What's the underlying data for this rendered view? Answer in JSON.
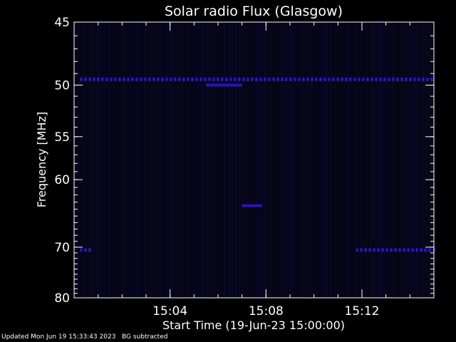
{
  "chart_data": {
    "type": "heatmap",
    "title": "Solar radio Flux (Glasgow)",
    "xlabel": "Start Time (19-Jun-23 15:00:00)",
    "ylabel": "Frequency [MHz]",
    "x_ticks": [
      "15:04",
      "15:08",
      "15:12"
    ],
    "y_ticks": [
      "45",
      "50",
      "55",
      "60",
      "70",
      "80"
    ],
    "y_scale": "reciprocal",
    "y_range_mhz": [
      45,
      80
    ],
    "x_range": [
      "15:00:00",
      "15:15:00"
    ],
    "background_color": "#050514",
    "emission_color": "#3a10e0",
    "features": [
      {
        "kind": "band",
        "freq_mhz": 49.5,
        "start": "15:00:15",
        "end": "15:15:00"
      },
      {
        "kind": "band",
        "freq_mhz": 70.5,
        "start": "15:00:15",
        "end": "15:00:40"
      },
      {
        "kind": "band",
        "freq_mhz": 70.5,
        "start": "15:11:45",
        "end": "15:15:00"
      },
      {
        "kind": "blob",
        "freq_mhz": 50.0,
        "start": "15:05:30",
        "end": "15:07:00"
      },
      {
        "kind": "blob",
        "freq_mhz": 63.5,
        "start": "15:07:00",
        "end": "15:07:50"
      }
    ]
  },
  "footer": {
    "updated": "Updated Mon Jun 19 15:33:43 2023",
    "note": "BG subtracted"
  }
}
